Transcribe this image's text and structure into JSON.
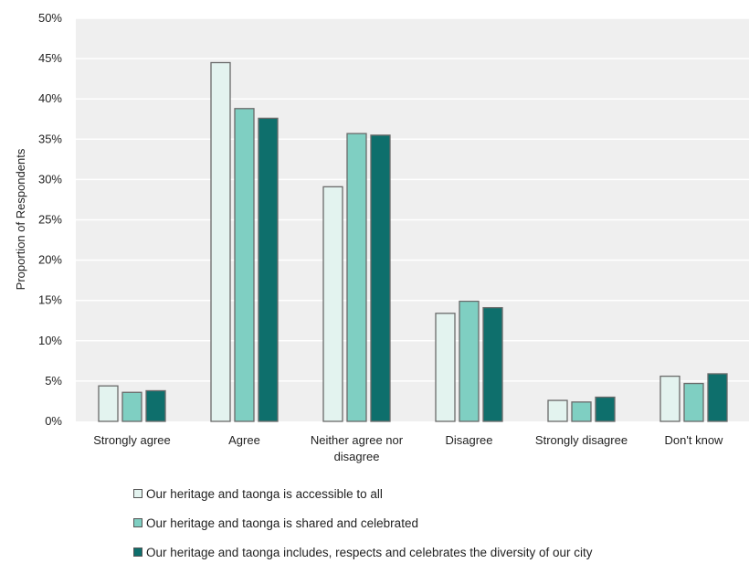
{
  "chart_data": {
    "type": "bar",
    "title": "",
    "xlabel": "",
    "ylabel": "Proportion of Respondents",
    "ylim": [
      0,
      50
    ],
    "y_ticks": [
      "0%",
      "5%",
      "10%",
      "15%",
      "20%",
      "25%",
      "30%",
      "35%",
      "40%",
      "45%",
      "50%"
    ],
    "grid": true,
    "legend_position": "bottom",
    "categories": [
      "Strongly agree",
      "Agree",
      "Neither agree nor disagree",
      "Disagree",
      "Strongly disagree",
      "Don't know"
    ],
    "category_lines": [
      [
        "Strongly agree"
      ],
      [
        "Agree"
      ],
      [
        "Neither agree nor",
        "disagree"
      ],
      [
        "Disagree"
      ],
      [
        "Strongly disagree"
      ],
      [
        "Don't know"
      ]
    ],
    "series": [
      {
        "name": "Our heritage and taonga is accessible to all",
        "color": "#e3f3ef",
        "values": [
          4.4,
          44.5,
          29.1,
          13.4,
          2.6,
          5.6
        ]
      },
      {
        "name": "Our heritage and taonga is shared and celebrated",
        "color": "#7fcfc2",
        "values": [
          3.6,
          38.8,
          35.7,
          14.9,
          2.4,
          4.7
        ]
      },
      {
        "name": "Our heritage and taonga includes, respects and celebrates the diversity of our city",
        "color": "#0e6f6c",
        "values": [
          3.8,
          37.6,
          35.5,
          14.1,
          3.0,
          5.9
        ]
      }
    ]
  }
}
